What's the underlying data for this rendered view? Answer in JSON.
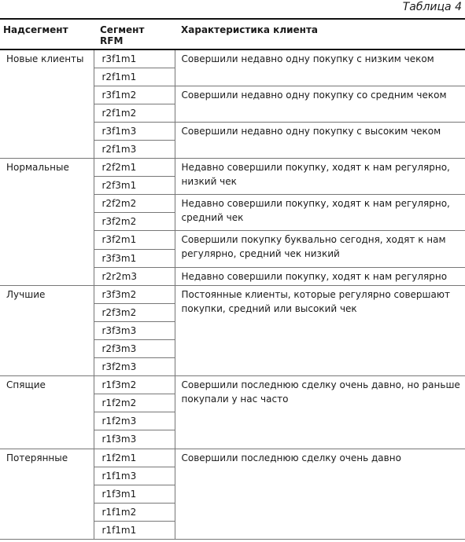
{
  "caption": "Таблица 4",
  "headers": {
    "supersegment": "Надсегмент",
    "rfm_segment": "Сегмент RFM",
    "description": "Характеристика клиента"
  },
  "groups": [
    {
      "name": "Новые клиенты",
      "rows": [
        "r3f1m1",
        "r2f1m1",
        "r3f1m2",
        "r2f1m2",
        "r3f1m3",
        "r2f1m3"
      ],
      "descriptions": [
        "Совершили недавно одну покупку с низким чеком",
        "Совершили недавно одну покупку со средним чеком",
        "Совершили недавно одну покупку с высоким чеком"
      ]
    },
    {
      "name": "Нормальные",
      "rows": [
        "r2f2m1",
        "r2f3m1",
        "r2f2m2",
        "r3f2m2",
        "r3f2m1",
        "r3f3m1",
        "r2r2m3"
      ],
      "descriptions": [
        "Недавно совершили покупку, ходят к нам регулярно, низкий чек",
        "Недавно совершили покупку, ходят к нам регулярно, средний чек",
        "Совершили покупку буквально сегодня, ходят к нам регулярно, средний чек низкий",
        "Недавно совершили покупку, ходят к нам регулярно"
      ]
    },
    {
      "name": "Лучшие",
      "rows": [
        "r3f3m2",
        "r2f3m2",
        "r3f3m3",
        "r2f3m3",
        "r3f2m3"
      ],
      "descriptions": [
        "Постоянные клиенты, которые регулярно совершают покупки, средний или высокий чек"
      ]
    },
    {
      "name": "Спящие",
      "rows": [
        "r1f3m2",
        "r1f2m2",
        "r1f2m3",
        "r1f3m3"
      ],
      "descriptions": [
        "Совершили последнюю сделку очень давно, но раньше покупали у нас часто"
      ]
    },
    {
      "name": "Потерянные",
      "rows": [
        "r1f2m1",
        "r1f1m3",
        "r1f3m1",
        "r1f1m2",
        "r1f1m1"
      ],
      "descriptions": [
        "Совершили последнюю сделку очень давно"
      ]
    }
  ]
}
